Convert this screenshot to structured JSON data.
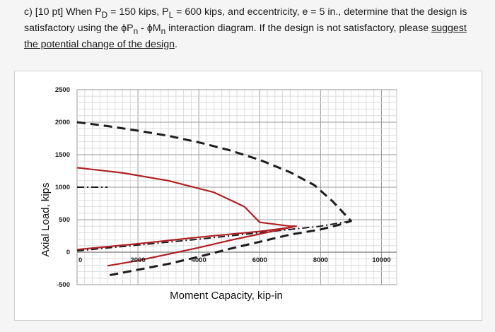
{
  "question": {
    "part": "c)",
    "points": "[10 pt]",
    "text_1": "When P",
    "sub_D": "D",
    "text_2": " = 150 kips, P",
    "sub_L": "L",
    "text_3": " = 600 kips, and eccentricity, e = 5 in., determine that the design is satisfactory using the ϕP",
    "sub_n1": "n",
    "text_4": " - ϕM",
    "sub_n2": "n",
    "text_5": " interaction diagram. If the design is not satisfactory, please ",
    "suggest": "suggest",
    "change": "the potential change of the design",
    "period": "."
  },
  "chart_data": {
    "type": "line",
    "xlabel": "Moment Capacity, kip-in",
    "ylabel": "Axial Load, kips",
    "xlim": [
      0,
      10500
    ],
    "ylim": [
      -500,
      2500
    ],
    "x_tick_labels": [
      "0",
      "2000",
      "4000",
      "6000",
      "8000",
      "10000"
    ],
    "x_tick_values": [
      0,
      2000,
      4000,
      6000,
      8000,
      10000
    ],
    "y_tick_labels": [
      "2500",
      "2000",
      "1500",
      "1000",
      "500",
      "0",
      "-500"
    ],
    "y_tick_values": [
      2500,
      2000,
      1500,
      1000,
      500,
      0,
      -500
    ],
    "grid": true,
    "series": [
      {
        "style": "dashed-bold",
        "color": "#1c1c1c",
        "x": [
          0,
          1000,
          2000,
          3000,
          4000,
          5000,
          6000,
          7000,
          7800,
          8400,
          9000,
          8600,
          8000,
          7000,
          6000,
          5000,
          4000,
          3000,
          2000,
          1000
        ],
        "y": [
          2000,
          1940,
          1870,
          1790,
          1690,
          1570,
          1420,
          1230,
          1030,
          780,
          480,
          420,
          350,
          270,
          160,
          50,
          -70,
          -180,
          -270,
          -360
        ]
      },
      {
        "style": "dash-dot",
        "color": "#1c1c1c",
        "x": [
          0,
          2000,
          4000,
          6000,
          8000,
          9000
        ],
        "y": [
          20,
          110,
          200,
          300,
          400,
          480
        ]
      },
      {
        "style": "dash-dot",
        "color": "#1c1c1c",
        "x": [
          0,
          1000
        ],
        "y": [
          1000,
          1000
        ]
      },
      {
        "style": "solid",
        "color": "#b02025",
        "x": [
          0,
          1500,
          3000,
          4500,
          5500,
          6000,
          7000,
          7200,
          6000,
          5000,
          4000,
          3000,
          2000,
          1000
        ],
        "y": [
          1300,
          1220,
          1100,
          920,
          700,
          460,
          400,
          400,
          280,
          180,
          70,
          -30,
          -130,
          -210
        ]
      },
      {
        "style": "solid",
        "color": "#b02025",
        "x": [
          0,
          2000,
          4000,
          6000,
          7000
        ],
        "y": [
          40,
          130,
          230,
          320,
          380
        ]
      }
    ]
  }
}
